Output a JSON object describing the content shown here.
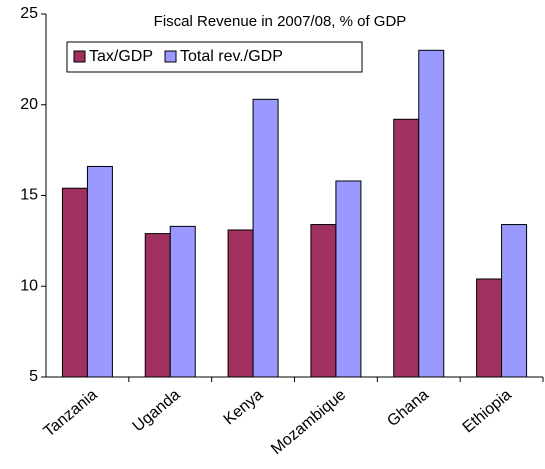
{
  "chart_data": {
    "type": "bar",
    "title": "Fiscal Revenue in 2007/08, % of GDP",
    "categories": [
      "Tanzania",
      "Uganda",
      "Kenya",
      "Mozambique",
      "Ghana",
      "Ethiopia"
    ],
    "series": [
      {
        "name": "Tax/GDP",
        "color": "#a0305f",
        "values": [
          15.4,
          12.9,
          13.1,
          13.4,
          19.2,
          10.4
        ]
      },
      {
        "name": "Total rev./GDP",
        "color": "#9999ff",
        "values": [
          16.6,
          13.3,
          20.3,
          15.8,
          23.0,
          13.4
        ]
      }
    ],
    "ylim": [
      5,
      25
    ],
    "yticks": [
      5,
      10,
      15,
      20,
      25
    ],
    "grid": false
  }
}
